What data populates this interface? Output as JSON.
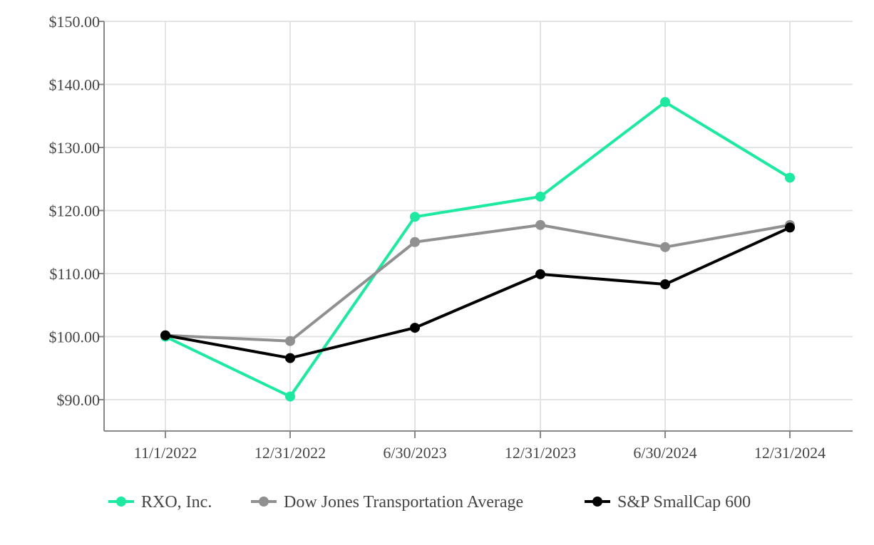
{
  "chart_data": {
    "type": "line",
    "title": "",
    "xlabel": "",
    "ylabel": "",
    "categories": [
      "11/1/2022",
      "12/31/2022",
      "6/30/2023",
      "12/31/2023",
      "6/30/2024",
      "12/31/2024"
    ],
    "ylim": [
      85,
      150
    ],
    "yticks": [
      90,
      100,
      110,
      120,
      130,
      140,
      150
    ],
    "ytick_labels": [
      "$90.00",
      "$100.00",
      "$110.00",
      "$120.00",
      "$130.00",
      "$140.00",
      "$150.00"
    ],
    "grid": true,
    "legend_position": "bottom",
    "series": [
      {
        "name": "RXO, Inc.",
        "color": "#1de9a0",
        "values": [
          100.0,
          90.5,
          119.0,
          122.2,
          137.2,
          125.2
        ]
      },
      {
        "name": "Dow Jones Transportation Average",
        "color": "#909090",
        "values": [
          100.2,
          99.3,
          115.0,
          117.7,
          114.2,
          117.7
        ]
      },
      {
        "name": "S&P SmallCap 600",
        "color": "#000000",
        "values": [
          100.2,
          96.6,
          101.4,
          109.9,
          108.3,
          117.3
        ]
      }
    ]
  }
}
